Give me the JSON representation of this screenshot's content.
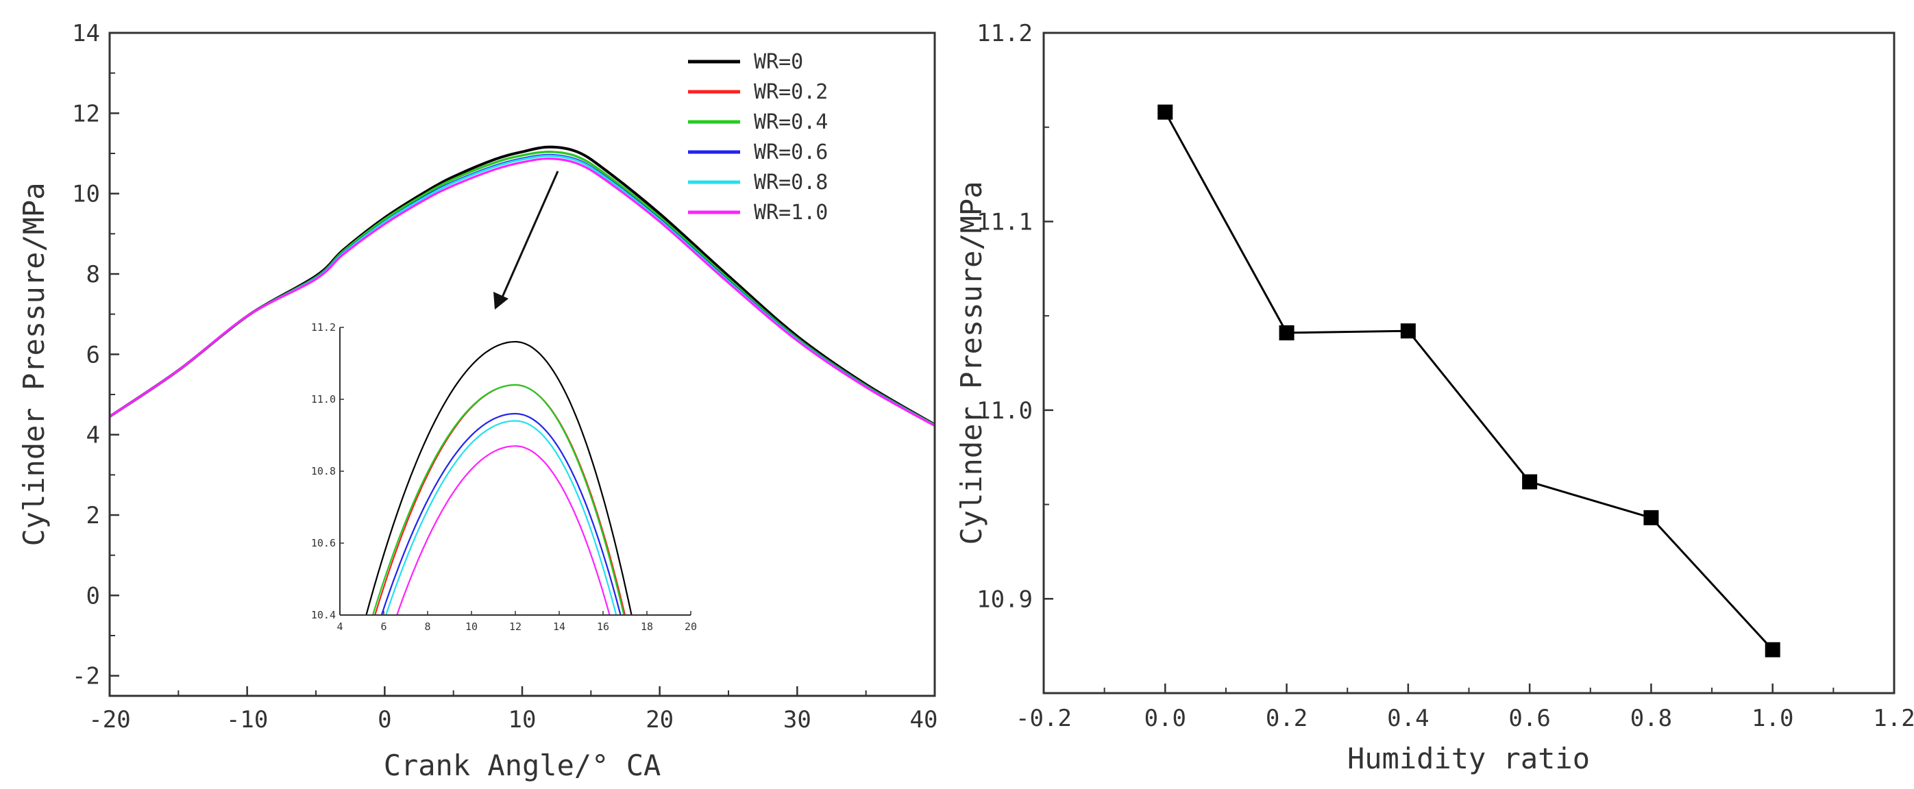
{
  "chart_data": [
    {
      "type": "line",
      "title": "",
      "xlabel": "Crank Angle/° CA",
      "ylabel": "Cylinder Pressure/MPa",
      "xlim": [
        -20,
        40
      ],
      "ylim": [
        -2.5,
        14
      ],
      "xticks": [
        -20,
        -10,
        0,
        10,
        20,
        30,
        40
      ],
      "xtick_labels": [
        "-20",
        "-10",
        "0",
        "10",
        "20",
        "30",
        "40"
      ],
      "yticks": [
        -2,
        0,
        2,
        4,
        6,
        8,
        10,
        12,
        14
      ],
      "ytick_labels": [
        "-2",
        "0",
        "2",
        "4",
        "6",
        "8",
        "10",
        "12",
        "14"
      ],
      "legend_position": "top-right",
      "x": [
        -20,
        -15,
        -10,
        -5,
        -3,
        0,
        3,
        5,
        8,
        10,
        12,
        14,
        16,
        20,
        25,
        30,
        35,
        40
      ],
      "series": [
        {
          "name": "WR=0",
          "color": "#000000",
          "values": [
            4.45,
            5.6,
            6.95,
            7.95,
            8.6,
            9.4,
            10.05,
            10.42,
            10.85,
            11.04,
            11.16,
            11.04,
            10.6,
            9.5,
            7.95,
            6.45,
            5.25,
            4.25
          ]
        },
        {
          "name": "WR=0.2",
          "color": "#ff2020",
          "values": [
            4.45,
            5.6,
            6.95,
            7.92,
            8.57,
            9.36,
            10.0,
            10.36,
            10.77,
            10.95,
            11.04,
            10.92,
            10.5,
            9.42,
            7.88,
            6.4,
            5.22,
            4.24
          ]
        },
        {
          "name": "WR=0.4",
          "color": "#22cc22",
          "values": [
            4.45,
            5.6,
            6.95,
            7.92,
            8.57,
            9.36,
            10.0,
            10.36,
            10.77,
            10.95,
            11.04,
            10.92,
            10.5,
            9.42,
            7.88,
            6.4,
            5.22,
            4.24
          ]
        },
        {
          "name": "WR=0.6",
          "color": "#2222ee",
          "values": [
            4.45,
            5.6,
            6.95,
            7.9,
            8.53,
            9.3,
            9.94,
            10.29,
            10.69,
            10.87,
            10.96,
            10.84,
            10.43,
            9.36,
            7.83,
            6.37,
            5.2,
            4.23
          ]
        },
        {
          "name": "WR=0.8",
          "color": "#22e0f0",
          "values": [
            4.45,
            5.6,
            6.95,
            7.89,
            8.52,
            9.29,
            9.92,
            10.27,
            10.67,
            10.85,
            10.94,
            10.82,
            10.41,
            9.34,
            7.81,
            6.36,
            5.19,
            4.23
          ]
        },
        {
          "name": "WR=1.0",
          "color": "#ff22ff",
          "values": [
            4.45,
            5.6,
            6.95,
            7.87,
            8.49,
            9.24,
            9.86,
            10.2,
            10.6,
            10.78,
            10.87,
            10.75,
            10.35,
            9.3,
            7.78,
            6.34,
            5.18,
            4.22
          ]
        }
      ],
      "inset": {
        "xlim": [
          4,
          20
        ],
        "ylim": [
          10.4,
          11.2
        ],
        "xticks": [
          4,
          6,
          8,
          10,
          12,
          14,
          16,
          18,
          20
        ],
        "xtick_labels": [
          "4",
          "6",
          "8",
          "10",
          "12",
          "14",
          "16",
          "18",
          "20"
        ],
        "yticks": [
          10.4,
          10.6,
          10.8,
          11.0,
          11.2
        ],
        "ytick_labels": [
          "10.4",
          "10.6",
          "10.8",
          "11.0",
          "11.2"
        ],
        "peak_x": 12,
        "curves": [
          {
            "name": "WR=0",
            "color": "#000000",
            "peak": 11.16,
            "x_left": 5.2,
            "x_right": 17.3
          },
          {
            "name": "WR=0.2",
            "color": "#ff2020",
            "peak": 11.04,
            "x_left": 5.6,
            "x_right": 17.0
          },
          {
            "name": "WR=0.4",
            "color": "#22cc22",
            "peak": 11.04,
            "x_left": 5.5,
            "x_right": 16.95
          },
          {
            "name": "WR=0.6",
            "color": "#2222ee",
            "peak": 10.96,
            "x_left": 5.9,
            "x_right": 16.8
          },
          {
            "name": "WR=0.8",
            "color": "#22e0f0",
            "peak": 10.94,
            "x_left": 6.1,
            "x_right": 16.6
          },
          {
            "name": "WR=1.0",
            "color": "#ff22ff",
            "peak": 10.87,
            "x_left": 6.6,
            "x_right": 16.3
          }
        ]
      }
    },
    {
      "type": "line",
      "title": "",
      "xlabel": "Humidity ratio",
      "ylabel": "Cylinder Pressure/MPa",
      "xlim": [
        -0.2,
        1.2
      ],
      "ylim": [
        10.85,
        11.2
      ],
      "xticks": [
        -0.2,
        0.0,
        0.2,
        0.4,
        0.6,
        0.8,
        1.0,
        1.2
      ],
      "xtick_labels": [
        "-0.2",
        "0.0",
        "0.2",
        "0.4",
        "0.6",
        "0.8",
        "1.0",
        "1.2"
      ],
      "yticks": [
        10.9,
        11.0,
        11.1,
        11.2
      ],
      "ytick_labels": [
        "10.9",
        "11.0",
        "11.1",
        "11.2"
      ],
      "marker": "square",
      "series": [
        {
          "name": "Cylinder Pressure",
          "color": "#000000",
          "x": [
            0.0,
            0.2,
            0.4,
            0.6,
            0.8,
            1.0
          ],
          "values": [
            11.158,
            11.041,
            11.042,
            10.962,
            10.943,
            10.873
          ]
        }
      ]
    }
  ]
}
